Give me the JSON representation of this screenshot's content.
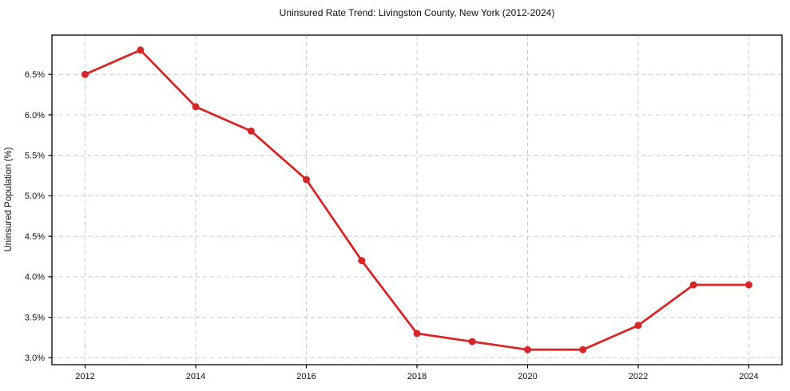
{
  "chart": {
    "title": "Uninsured Rate Trend: Livingston County, New York (2012-2024)",
    "ylabel": "Uninsured Population (%)"
  },
  "chart_data": {
    "type": "line",
    "title": "Uninsured Rate Trend: Livingston County, New York (2012-2024)",
    "xlabel": "",
    "ylabel": "Uninsured Population (%)",
    "x": [
      2012,
      2013,
      2014,
      2015,
      2016,
      2017,
      2018,
      2019,
      2020,
      2021,
      2022,
      2023,
      2024
    ],
    "values": [
      6.5,
      6.8,
      6.1,
      5.8,
      5.2,
      4.2,
      3.3,
      3.2,
      3.1,
      3.1,
      3.4,
      3.9,
      3.9
    ],
    "xlim": [
      2011.4,
      2024.6
    ],
    "ylim": [
      2.915,
      6.985
    ],
    "xticks": [
      2012,
      2014,
      2016,
      2018,
      2020,
      2022,
      2024
    ],
    "xtick_labels": [
      "2012",
      "2014",
      "2016",
      "2018",
      "2020",
      "2022",
      "2024"
    ],
    "yticks": [
      3.0,
      3.5,
      4.0,
      4.5,
      5.0,
      5.5,
      6.0,
      6.5
    ],
    "ytick_labels": [
      "3.0%",
      "3.5%",
      "4.0%",
      "4.5%",
      "5.0%",
      "5.5%",
      "6.0%",
      "6.5%"
    ],
    "grid": true,
    "grid_style": "dashed",
    "grid_color": "#cccccc",
    "line_color": "#d62728",
    "marker": "circle",
    "marker_color": "#d62728",
    "axis_color": "#000000",
    "background": "#ffffff",
    "legend": null
  }
}
